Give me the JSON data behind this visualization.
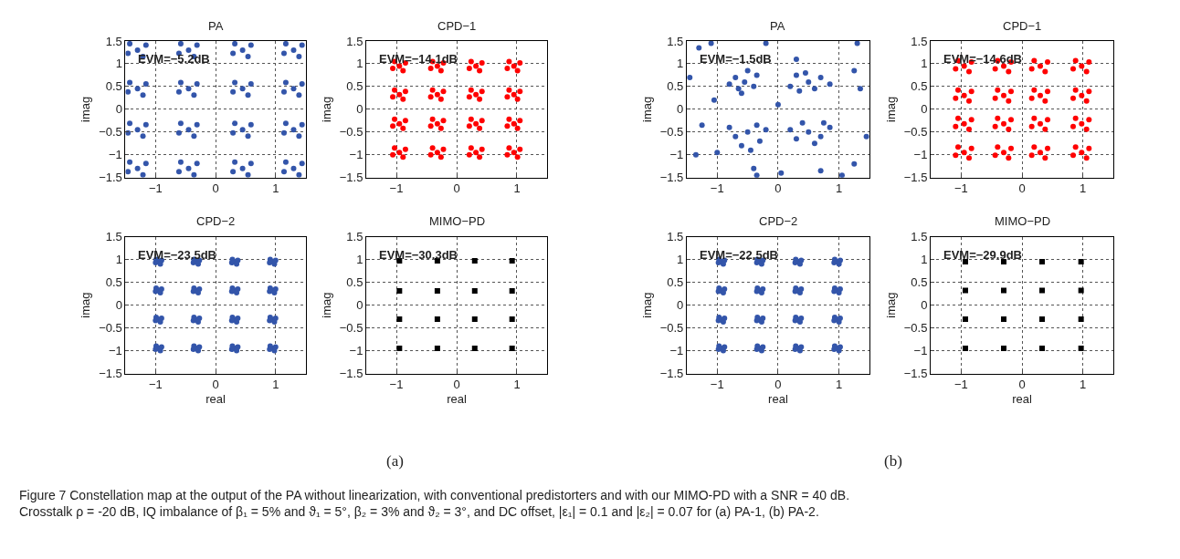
{
  "chart_data": [
    {
      "type": "scatter",
      "title": "PA",
      "ylabel": "imag",
      "xlim": [
        -1.5,
        1.5
      ],
      "ylim": [
        -1.5,
        1.5
      ],
      "xticks": [
        -1,
        0,
        1
      ],
      "yticks": [
        -1.5,
        -1,
        -0.5,
        0,
        0.5,
        1,
        1.5
      ],
      "grid": true,
      "marker": "circle",
      "annotations": [
        "EVM=−5.2dB"
      ],
      "series": [
        {
          "color": "#3355aa",
          "x": [
            -1.3,
            -1.16,
            -1.43,
            -1.21,
            -1.46,
            -1.3,
            -1.16,
            -1.43,
            -1.21,
            -1.46,
            -1.3,
            -1.16,
            -1.43,
            -1.21,
            -1.46,
            -1.3,
            -1.16,
            -1.43,
            -1.21,
            -1.46,
            -0.45,
            -0.31,
            -0.58,
            -0.36,
            -0.61,
            -0.45,
            -0.31,
            -0.58,
            -0.36,
            -0.61,
            -0.45,
            -0.31,
            -0.58,
            -0.36,
            -0.61,
            -0.45,
            -0.31,
            -0.58,
            -0.36,
            -0.61,
            0.45,
            0.59,
            0.32,
            0.54,
            0.29,
            0.45,
            0.59,
            0.32,
            0.54,
            0.29,
            0.45,
            0.59,
            0.32,
            0.54,
            0.29,
            0.45,
            0.59,
            0.32,
            0.54,
            0.29,
            1.3,
            1.44,
            1.17,
            1.39,
            1.14,
            1.3,
            1.44,
            1.17,
            1.39,
            1.14,
            1.3,
            1.44,
            1.17,
            1.39,
            1.14,
            1.3,
            1.44,
            1.17,
            1.39,
            1.14
          ],
          "values": [
            -1.3,
            -1.19,
            -1.16,
            -1.44,
            -1.37,
            -0.45,
            -0.34,
            -0.31,
            -0.59,
            -0.52,
            0.45,
            0.56,
            0.59,
            0.31,
            0.38,
            1.3,
            1.41,
            1.44,
            1.16,
            1.23,
            -1.3,
            -1.19,
            -1.16,
            -1.44,
            -1.37,
            -0.45,
            -0.34,
            -0.31,
            -0.59,
            -0.52,
            0.45,
            0.56,
            0.59,
            0.31,
            0.38,
            1.3,
            1.41,
            1.44,
            1.16,
            1.23,
            -1.3,
            -1.19,
            -1.16,
            -1.44,
            -1.37,
            -0.45,
            -0.34,
            -0.31,
            -0.59,
            -0.52,
            0.45,
            0.56,
            0.59,
            0.31,
            0.38,
            1.3,
            1.41,
            1.44,
            1.16,
            1.23,
            -1.3,
            -1.19,
            -1.16,
            -1.44,
            -1.37,
            -0.45,
            -0.34,
            -0.31,
            -0.59,
            -0.52,
            0.45,
            0.56,
            0.59,
            0.31,
            0.38,
            1.3,
            1.41,
            1.44,
            1.16,
            1.23
          ]
        }
      ]
    },
    {
      "type": "scatter",
      "title": "CPD−1",
      "ylabel": "imag",
      "xlim": [
        -1.5,
        1.5
      ],
      "ylim": [
        -1.5,
        1.5
      ],
      "xticks": [
        -1,
        0,
        1
      ],
      "yticks": [
        -1.5,
        -1,
        -0.5,
        0,
        0.5,
        1,
        1.5
      ],
      "grid": true,
      "marker": "circle",
      "annotations": [
        "EVM=−14.1dB"
      ],
      "series": [
        {
          "color": "#ff0000",
          "x": [
            -0.95,
            -0.85,
            -1.03,
            -0.89,
            -1.06,
            -0.95,
            -0.85,
            -1.03,
            -0.89,
            -1.06,
            -0.95,
            -0.85,
            -1.03,
            -0.89,
            -1.06,
            -0.95,
            -0.85,
            -1.03,
            -0.89,
            -1.06,
            -0.32,
            -0.22,
            -0.4,
            -0.26,
            -0.43,
            -0.32,
            -0.22,
            -0.4,
            -0.26,
            -0.43,
            -0.32,
            -0.22,
            -0.4,
            -0.26,
            -0.43,
            -0.32,
            -0.22,
            -0.4,
            -0.26,
            -0.43,
            0.32,
            0.42,
            0.24,
            0.38,
            0.21,
            0.32,
            0.42,
            0.24,
            0.38,
            0.21,
            0.32,
            0.42,
            0.24,
            0.38,
            0.21,
            0.32,
            0.42,
            0.24,
            0.38,
            0.21,
            0.95,
            1.05,
            0.87,
            1.01,
            0.84,
            0.95,
            1.05,
            0.87,
            1.01,
            0.84,
            0.95,
            1.05,
            0.87,
            1.01,
            0.84,
            0.95,
            1.05,
            0.87,
            1.01,
            0.84
          ],
          "values": [
            -0.95,
            -0.88,
            -0.85,
            -1.05,
            -1.0,
            -0.32,
            -0.25,
            -0.22,
            -0.42,
            -0.37,
            0.32,
            0.39,
            0.42,
            0.22,
            0.27,
            0.95,
            1.02,
            1.05,
            0.85,
            0.9,
            -0.95,
            -0.88,
            -0.85,
            -1.05,
            -1.0,
            -0.32,
            -0.25,
            -0.22,
            -0.42,
            -0.37,
            0.32,
            0.39,
            0.42,
            0.22,
            0.27,
            0.95,
            1.02,
            1.05,
            0.85,
            0.9,
            -0.95,
            -0.88,
            -0.85,
            -1.05,
            -1.0,
            -0.32,
            -0.25,
            -0.22,
            -0.42,
            -0.37,
            0.32,
            0.39,
            0.42,
            0.22,
            0.27,
            0.95,
            1.02,
            1.05,
            0.85,
            0.9,
            -0.95,
            -0.88,
            -0.85,
            -1.05,
            -1.0,
            -0.32,
            -0.25,
            -0.22,
            -0.42,
            -0.37,
            0.32,
            0.39,
            0.42,
            0.22,
            0.27,
            0.95,
            1.02,
            1.05,
            0.85,
            0.9
          ]
        }
      ]
    },
    {
      "type": "scatter",
      "title": "CPD−2",
      "xlabel": "real",
      "ylabel": "imag",
      "xlim": [
        -1.5,
        1.5
      ],
      "ylim": [
        -1.5,
        1.5
      ],
      "xticks": [
        -1,
        0,
        1
      ],
      "yticks": [
        -1.5,
        -1,
        -0.5,
        0,
        0.5,
        1,
        1.5
      ],
      "grid": true,
      "marker": "circle",
      "annotations": [
        "EVM=−23.5dB"
      ],
      "series": [
        {
          "color": "#3355aa",
          "x": [
            -0.95,
            -0.9,
            -0.99,
            -0.92,
            -1.0,
            -0.95,
            -0.9,
            -0.99,
            -0.92,
            -1.0,
            -0.95,
            -0.9,
            -0.99,
            -0.92,
            -1.0,
            -0.95,
            -0.9,
            -0.99,
            -0.92,
            -1.0,
            -0.32,
            -0.27,
            -0.36,
            -0.29,
            -0.37,
            -0.32,
            -0.27,
            -0.36,
            -0.29,
            -0.37,
            -0.32,
            -0.27,
            -0.36,
            -0.29,
            -0.37,
            -0.32,
            -0.27,
            -0.36,
            -0.29,
            -0.37,
            0.32,
            0.37,
            0.28,
            0.35,
            0.27,
            0.32,
            0.37,
            0.28,
            0.35,
            0.27,
            0.32,
            0.37,
            0.28,
            0.35,
            0.27,
            0.32,
            0.37,
            0.28,
            0.35,
            0.27,
            0.95,
            1.0,
            0.91,
            0.98,
            0.9,
            0.95,
            1.0,
            0.91,
            0.98,
            0.9,
            0.95,
            1.0,
            0.91,
            0.98,
            0.9,
            0.95,
            1.0,
            0.91,
            0.98,
            0.9
          ],
          "values": [
            -0.95,
            -0.92,
            -0.9,
            -1.0,
            -0.97,
            -0.32,
            -0.29,
            -0.27,
            -0.37,
            -0.34,
            0.32,
            0.35,
            0.37,
            0.27,
            0.3,
            0.95,
            0.98,
            1.0,
            0.9,
            0.93,
            -0.95,
            -0.92,
            -0.9,
            -1.0,
            -0.97,
            -0.32,
            -0.29,
            -0.27,
            -0.37,
            -0.34,
            0.32,
            0.35,
            0.37,
            0.27,
            0.3,
            0.95,
            0.98,
            1.0,
            0.9,
            0.93,
            -0.95,
            -0.92,
            -0.9,
            -1.0,
            -0.97,
            -0.32,
            -0.29,
            -0.27,
            -0.37,
            -0.34,
            0.32,
            0.35,
            0.37,
            0.27,
            0.3,
            0.95,
            0.98,
            1.0,
            0.9,
            0.93,
            -0.95,
            -0.92,
            -0.9,
            -1.0,
            -0.97,
            -0.32,
            -0.29,
            -0.27,
            -0.37,
            -0.34,
            0.32,
            0.35,
            0.37,
            0.27,
            0.3,
            0.95,
            0.98,
            1.0,
            0.9,
            0.93
          ]
        }
      ]
    },
    {
      "type": "scatter",
      "title": "MIMO−PD",
      "xlabel": "real",
      "ylabel": "imag",
      "xlim": [
        -1.5,
        1.5
      ],
      "ylim": [
        -1.5,
        1.5
      ],
      "xticks": [
        -1,
        0,
        1
      ],
      "yticks": [
        -1.5,
        -1,
        -0.5,
        0,
        0.5,
        1,
        1.5
      ],
      "grid": true,
      "marker": "square",
      "annotations": [
        "EVM=−30.3dB"
      ],
      "series": [
        {
          "color": "#000000",
          "x": [
            -0.95,
            -0.95,
            -0.95,
            -0.95,
            -0.32,
            -0.32,
            -0.32,
            -0.32,
            0.3,
            0.3,
            0.3,
            0.3,
            0.92,
            0.92,
            0.92,
            0.92
          ],
          "values": [
            -0.95,
            -0.31,
            0.31,
            0.97,
            -0.95,
            -0.31,
            0.31,
            0.97,
            -0.95,
            -0.31,
            0.31,
            0.97,
            -0.95,
            -0.31,
            0.31,
            0.97
          ]
        }
      ]
    },
    {
      "type": "scatter",
      "title": "PA",
      "ylabel": "imag",
      "xlim": [
        -1.5,
        1.5
      ],
      "ylim": [
        -1.5,
        1.5
      ],
      "xticks": [
        -1,
        0,
        1
      ],
      "yticks": [
        -1.5,
        -1,
        -0.5,
        0,
        0.5,
        1,
        1.5
      ],
      "grid": true,
      "marker": "circle",
      "annotations": [
        "EVM=−1.5dB"
      ],
      "series": [
        {
          "color": "#3355aa",
          "x": [
            -0.55,
            -0.7,
            -0.4,
            -0.6,
            -0.8,
            -0.35,
            -0.5,
            -0.65,
            0.5,
            0.3,
            0.7,
            0.6,
            0.2,
            0.85,
            0.45,
            0.35,
            -0.5,
            -0.7,
            -0.35,
            -0.6,
            -0.3,
            -0.8,
            -0.45,
            -0.2,
            0.5,
            0.4,
            0.7,
            0.3,
            0.85,
            0.6,
            0.2,
            0.75,
            -1.3,
            -1.1,
            -1.45,
            -1.25,
            -1.35,
            -1.0,
            -0.4,
            -0.35,
            0.05,
            0.7,
            1.05,
            1.25,
            1.45,
            1.35,
            1.25,
            1.3,
            0.3,
            -0.2,
            0.0,
            -1.05
          ],
          "values": [
            0.6,
            0.7,
            0.5,
            0.35,
            0.55,
            0.75,
            0.85,
            0.45,
            0.6,
            0.75,
            0.7,
            0.45,
            0.5,
            0.55,
            0.8,
            0.4,
            -0.5,
            -0.6,
            -0.35,
            -0.8,
            -0.7,
            -0.4,
            -0.9,
            -0.45,
            -0.5,
            -0.3,
            -0.6,
            -0.65,
            -0.4,
            -0.75,
            -0.45,
            -0.3,
            1.35,
            1.45,
            0.7,
            -0.35,
            -1.0,
            -0.95,
            -1.3,
            -1.45,
            -1.4,
            -1.35,
            -1.45,
            -1.2,
            -0.6,
            0.45,
            0.85,
            1.45,
            1.1,
            1.45,
            0.1,
            0.2
          ]
        }
      ]
    },
    {
      "type": "scatter",
      "title": "CPD−1",
      "ylabel": "imag",
      "xlim": [
        -1.5,
        1.5
      ],
      "ylim": [
        -1.5,
        1.5
      ],
      "xticks": [
        -1,
        0,
        1
      ],
      "yticks": [
        -1.5,
        -1,
        -0.5,
        0,
        0.5,
        1,
        1.5
      ],
      "grid": true,
      "marker": "circle",
      "annotations": [
        "EVM=−14.6dB"
      ],
      "series": [
        {
          "color": "#ff0000",
          "x": [
            -0.95,
            -0.83,
            -1.05,
            -0.87,
            -1.09,
            -0.95,
            -0.83,
            -1.05,
            -0.87,
            -1.09,
            -0.95,
            -0.83,
            -1.05,
            -0.87,
            -1.09,
            -0.95,
            -0.83,
            -1.05,
            -0.87,
            -1.09,
            -0.3,
            -0.18,
            -0.4,
            -0.22,
            -0.44,
            -0.3,
            -0.18,
            -0.4,
            -0.22,
            -0.44,
            -0.3,
            -0.18,
            -0.4,
            -0.22,
            -0.44,
            -0.3,
            -0.18,
            -0.4,
            -0.22,
            -0.44,
            0.3,
            0.42,
            0.2,
            0.38,
            0.16,
            0.3,
            0.42,
            0.2,
            0.38,
            0.16,
            0.3,
            0.42,
            0.2,
            0.38,
            0.16,
            0.3,
            0.42,
            0.2,
            0.38,
            0.16,
            0.98,
            1.1,
            0.88,
            1.06,
            0.84,
            0.98,
            1.1,
            0.88,
            1.06,
            0.84,
            0.98,
            1.1,
            0.88,
            1.06,
            0.84,
            0.98,
            1.1,
            0.88,
            1.06,
            0.84
          ],
          "values": [
            -0.95,
            -0.86,
            -0.83,
            -1.07,
            -1.01,
            -0.32,
            -0.23,
            -0.2,
            -0.44,
            -0.38,
            0.3,
            0.39,
            0.42,
            0.18,
            0.24,
            0.95,
            1.04,
            1.07,
            0.83,
            0.89,
            -0.95,
            -0.86,
            -0.83,
            -1.07,
            -1.01,
            -0.32,
            -0.23,
            -0.2,
            -0.44,
            -0.38,
            0.3,
            0.39,
            0.42,
            0.18,
            0.24,
            0.95,
            1.04,
            1.07,
            0.83,
            0.89,
            -0.95,
            -0.86,
            -0.83,
            -1.07,
            -1.01,
            -0.32,
            -0.23,
            -0.2,
            -0.44,
            -0.38,
            0.3,
            0.39,
            0.42,
            0.18,
            0.24,
            0.95,
            1.04,
            1.07,
            0.83,
            0.89,
            -0.95,
            -0.86,
            -0.83,
            -1.07,
            -1.01,
            -0.32,
            -0.23,
            -0.2,
            -0.44,
            -0.38,
            0.3,
            0.39,
            0.42,
            0.18,
            0.24,
            0.95,
            1.04,
            1.07,
            0.83,
            0.89
          ]
        }
      ]
    },
    {
      "type": "scatter",
      "title": "CPD−2",
      "xlabel": "real",
      "ylabel": "imag",
      "xlim": [
        -1.5,
        1.5
      ],
      "ylim": [
        -1.5,
        1.5
      ],
      "xticks": [
        -1,
        0,
        1
      ],
      "yticks": [
        -1.5,
        -1,
        -0.5,
        0,
        0.5,
        1,
        1.5
      ],
      "grid": true,
      "marker": "circle",
      "annotations": [
        "EVM=−22.5dB"
      ],
      "series": [
        {
          "color": "#3355aa",
          "x": [
            -0.93,
            -0.88,
            -0.97,
            -0.9,
            -0.98,
            -0.93,
            -0.88,
            -0.97,
            -0.9,
            -0.98,
            -0.93,
            -0.88,
            -0.97,
            -0.9,
            -0.98,
            -0.93,
            -0.88,
            -0.97,
            -0.9,
            -0.98,
            -0.3,
            -0.25,
            -0.34,
            -0.27,
            -0.35,
            -0.3,
            -0.25,
            -0.34,
            -0.27,
            -0.35,
            -0.3,
            -0.25,
            -0.34,
            -0.27,
            -0.35,
            -0.3,
            -0.25,
            -0.34,
            -0.27,
            -0.35,
            0.33,
            0.38,
            0.29,
            0.36,
            0.28,
            0.33,
            0.38,
            0.29,
            0.36,
            0.28,
            0.33,
            0.38,
            0.29,
            0.36,
            0.28,
            0.33,
            0.38,
            0.29,
            0.36,
            0.28,
            0.97,
            1.02,
            0.93,
            1.0,
            0.92,
            0.97,
            1.02,
            0.93,
            1.0,
            0.92,
            0.97,
            1.02,
            0.93,
            1.0,
            0.92,
            0.97,
            1.02,
            0.93,
            1.0,
            0.92
          ],
          "values": [
            -0.95,
            -0.92,
            -0.9,
            -1.0,
            -0.97,
            -0.32,
            -0.29,
            -0.27,
            -0.37,
            -0.34,
            0.32,
            0.35,
            0.37,
            0.27,
            0.3,
            0.95,
            0.98,
            1.0,
            0.9,
            0.93,
            -0.95,
            -0.92,
            -0.9,
            -1.0,
            -0.97,
            -0.32,
            -0.29,
            -0.27,
            -0.37,
            -0.34,
            0.32,
            0.35,
            0.37,
            0.27,
            0.3,
            0.95,
            0.98,
            1.0,
            0.9,
            0.93,
            -0.95,
            -0.92,
            -0.9,
            -1.0,
            -0.97,
            -0.32,
            -0.29,
            -0.27,
            -0.37,
            -0.34,
            0.32,
            0.35,
            0.37,
            0.27,
            0.3,
            0.95,
            0.98,
            1.0,
            0.9,
            0.93,
            -0.95,
            -0.92,
            -0.9,
            -1.0,
            -0.97,
            -0.32,
            -0.29,
            -0.27,
            -0.37,
            -0.34,
            0.32,
            0.35,
            0.37,
            0.27,
            0.3,
            0.95,
            0.98,
            1.0,
            0.9,
            0.93
          ]
        }
      ]
    },
    {
      "type": "scatter",
      "title": "MIMO−PD",
      "xlabel": "real",
      "ylabel": "imag",
      "xlim": [
        -1.5,
        1.5
      ],
      "ylim": [
        -1.5,
        1.5
      ],
      "xticks": [
        -1,
        0,
        1
      ],
      "yticks": [
        -1.5,
        -1,
        -0.5,
        0,
        0.5,
        1,
        1.5
      ],
      "grid": true,
      "marker": "square",
      "annotations": [
        "EVM=−29.9dB"
      ],
      "series": [
        {
          "color": "#000000",
          "x": [
            -0.93,
            -0.93,
            -0.93,
            -0.93,
            -0.3,
            -0.3,
            -0.3,
            -0.3,
            0.33,
            0.33,
            0.33,
            0.33,
            0.97,
            0.97,
            0.97,
            0.97
          ],
          "values": [
            -0.95,
            -0.31,
            0.32,
            0.95,
            -0.95,
            -0.31,
            0.32,
            0.95,
            -0.95,
            -0.31,
            0.32,
            0.95,
            -0.95,
            -0.31,
            0.32,
            0.95
          ]
        }
      ]
    },
    {
      "type": "other",
      "annotations": [
        "(a)",
        "(b)",
        "Figure 7 Constellation map at the output of the PA without linearization, with conventional predistorters and with our MIMO-PD with a SNR = 40 dB. Crosstalk ρ = -20 dB, IQ imbalance of β₁ = 5% and ϑ₁ = 5°, β₂ = 3% and ϑ₂ = 3°, and DC offset, |ε₁| = 0.1 and |ε₂| = 0.07 for (a) PA-1, (b) PA-2."
      ]
    }
  ]
}
